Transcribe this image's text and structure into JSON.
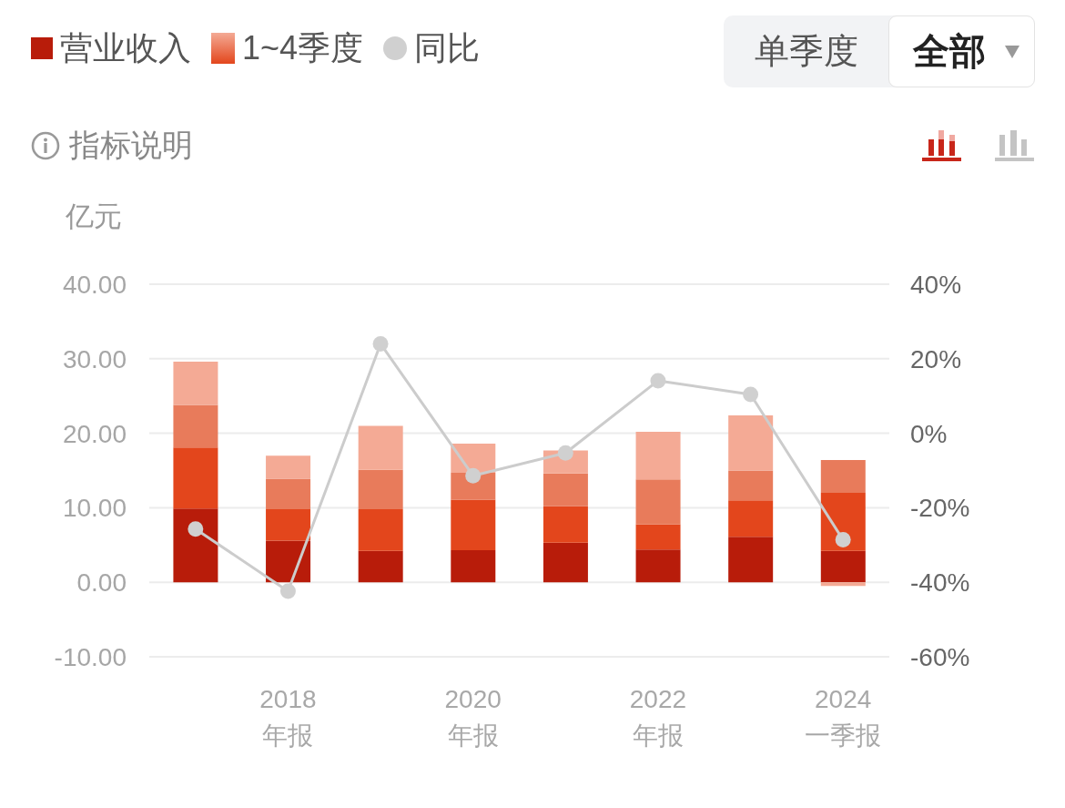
{
  "chart_data": {
    "type": "bar",
    "stacked": true,
    "categories": [
      null,
      "2018\n年报",
      null,
      "2020\n年报",
      null,
      "2022\n年报",
      null,
      "2024\n一季报"
    ],
    "series": [
      {
        "name": "营业收入",
        "color": "#b81c0a",
        "values": [
          9.9,
          5.6,
          4.2,
          4.3,
          5.3,
          4.4,
          6.1,
          4.2
        ]
      },
      {
        "name": "1~4季度",
        "color": "#e3461c",
        "values": [
          8.2,
          4.2,
          5.6,
          6.8,
          4.9,
          3.4,
          4.9,
          7.8
        ]
      },
      {
        "color": "#e87b5b",
        "values": [
          5.7,
          4.1,
          5.3,
          3.6,
          4.4,
          6.0,
          4.0,
          4.4
        ]
      },
      {
        "color": "#f4aa95",
        "values": [
          5.8,
          3.1,
          5.9,
          3.9,
          3.1,
          6.4,
          7.4,
          -0.5
        ]
      },
      {
        "name": "同比",
        "type": "line",
        "axis": "y2",
        "color": "#cccccc",
        "values": [
          -25.7,
          -42.4,
          24.0,
          -11.4,
          -5.3,
          14.1,
          10.4,
          -28.6
        ]
      }
    ],
    "ylabel": "亿元",
    "ylim": [
      -10,
      40
    ],
    "yticks": [
      {
        "value": -10,
        "label": "-10.00"
      },
      {
        "value": 0,
        "label": "0.00"
      },
      {
        "value": 10,
        "label": "10.00"
      },
      {
        "value": 20,
        "label": "20.00"
      },
      {
        "value": 30,
        "label": "30.00"
      },
      {
        "value": 40,
        "label": "40.00"
      }
    ],
    "y2lim": [
      -60,
      40
    ],
    "y2ticks": [
      {
        "value": -60,
        "label": "-60%"
      },
      {
        "value": -40,
        "label": "-40%"
      },
      {
        "value": -20,
        "label": "-20%"
      },
      {
        "value": 0,
        "label": "0%"
      },
      {
        "value": 20,
        "label": "20%"
      },
      {
        "value": 40,
        "label": "40%"
      }
    ],
    "grid": "y",
    "legend": "top left",
    "marker": "circle",
    "line_style": "solid",
    "annotations": [
      "指标说明",
      "单季度",
      "全部"
    ]
  }
}
